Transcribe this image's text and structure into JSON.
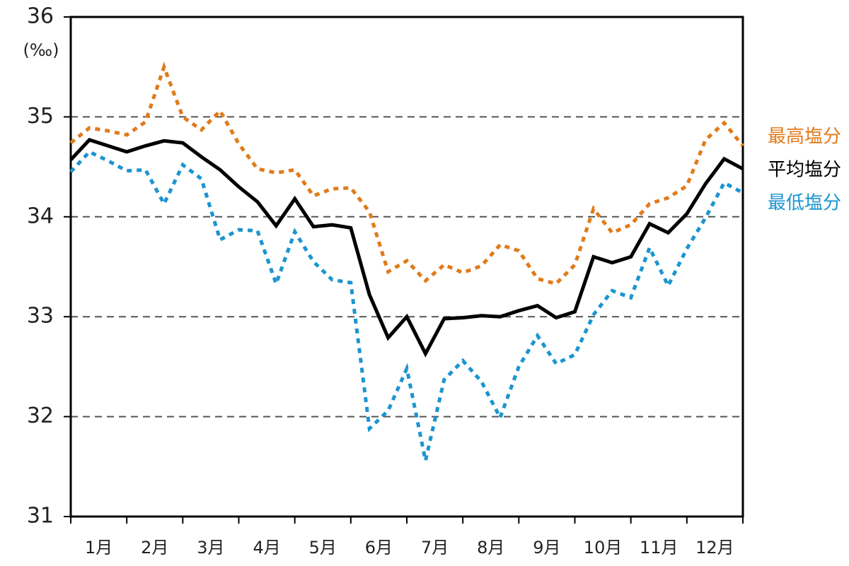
{
  "chart_data": {
    "type": "line",
    "y_label": "(‰)",
    "x": [
      0,
      1,
      2,
      3,
      4,
      5,
      6,
      7,
      8,
      9,
      10,
      11,
      12,
      13,
      14,
      15,
      16,
      17,
      18,
      19,
      20,
      21,
      22,
      23,
      24,
      25,
      26,
      27,
      28,
      29,
      30,
      31,
      32,
      33,
      34,
      35,
      36
    ],
    "xlim": [
      0,
      36
    ],
    "xticks": [
      0,
      3,
      6,
      9,
      12,
      15,
      18,
      21,
      24,
      27,
      30,
      33,
      36
    ],
    "month_labels": [
      "1月",
      "2月",
      "3月",
      "4月",
      "5月",
      "6月",
      "7月",
      "8月",
      "9月",
      "10月",
      "11月",
      "12月"
    ],
    "ylim": [
      31,
      36
    ],
    "yticks": [
      31,
      32,
      33,
      34,
      35,
      36
    ],
    "grid": true,
    "series": [
      {
        "name": "最高塩分",
        "color": "#e07b1a",
        "dash": true,
        "values": [
          34.74,
          34.89,
          34.86,
          34.82,
          34.95,
          35.5,
          35.0,
          34.87,
          35.06,
          34.73,
          34.48,
          34.44,
          34.47,
          34.21,
          34.28,
          34.29,
          34.05,
          33.45,
          33.56,
          33.36,
          33.52,
          33.44,
          33.51,
          33.72,
          33.66,
          33.38,
          33.33,
          33.52,
          34.08,
          33.84,
          33.92,
          34.13,
          34.19,
          34.31,
          34.77,
          34.94,
          34.71
        ]
      },
      {
        "name": "平均塩分",
        "color": "#000000",
        "dash": false,
        "values": [
          34.57,
          34.77,
          34.71,
          34.65,
          34.71,
          34.76,
          34.74,
          34.6,
          34.47,
          34.3,
          34.15,
          33.91,
          34.18,
          33.9,
          33.92,
          33.89,
          33.22,
          32.79,
          33.0,
          32.63,
          32.98,
          32.99,
          33.01,
          33.0,
          33.06,
          33.11,
          32.99,
          33.05,
          33.6,
          33.54,
          33.6,
          33.93,
          33.84,
          34.03,
          34.33,
          34.58,
          34.48
        ]
      },
      {
        "name": "最低塩分",
        "color": "#1b95d0",
        "dash": true,
        "values": [
          34.45,
          34.65,
          34.56,
          34.46,
          34.47,
          34.13,
          34.52,
          34.38,
          33.77,
          33.87,
          33.86,
          33.33,
          33.85,
          33.55,
          33.37,
          33.34,
          31.88,
          32.06,
          32.48,
          31.56,
          32.37,
          32.56,
          32.35,
          31.99,
          32.5,
          32.81,
          32.53,
          32.62,
          33.02,
          33.26,
          33.19,
          33.69,
          33.31,
          33.68,
          33.99,
          34.34,
          34.24
        ]
      }
    ]
  }
}
